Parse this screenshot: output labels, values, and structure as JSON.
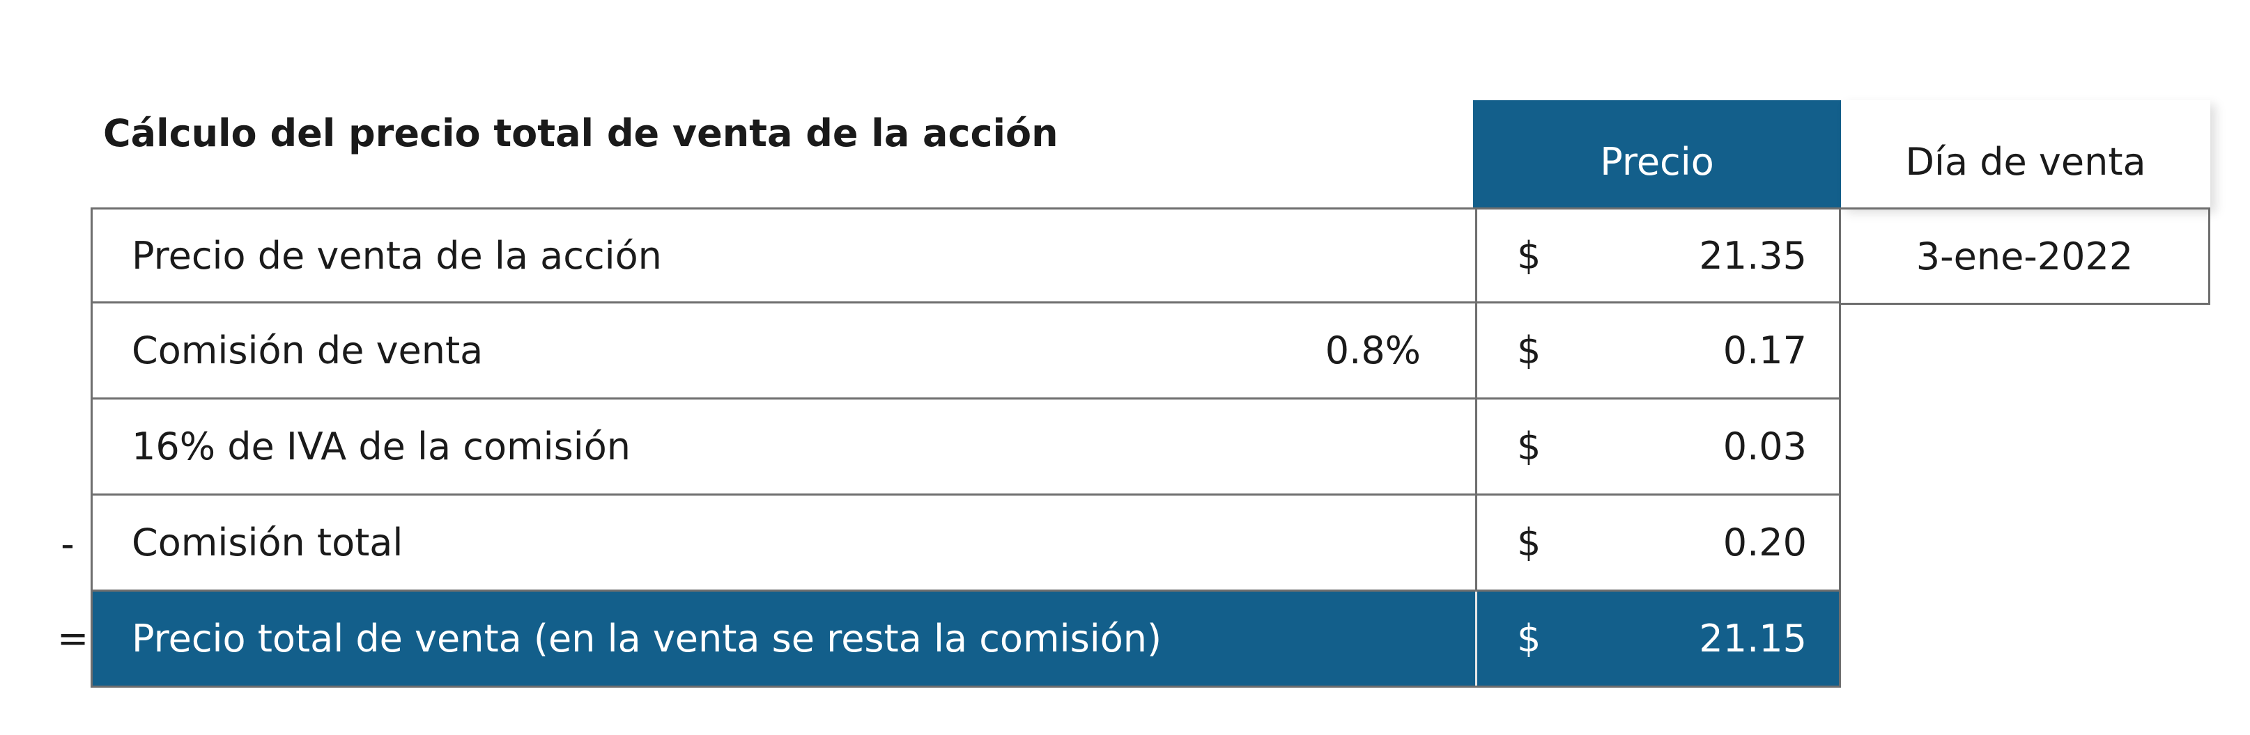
{
  "title": "Cálculo del precio total de venta de la acción",
  "headers": {
    "price": "Precio",
    "sale_day": "Día de venta"
  },
  "rows": [
    {
      "label": "Precio de venta de la acción",
      "pct": "",
      "currency": "$",
      "value": "21.35",
      "op": ""
    },
    {
      "label": "Comisión de venta",
      "pct": "0.8%",
      "currency": "$",
      "value": "0.17",
      "op": ""
    },
    {
      "label": "16% de IVA de la comisión",
      "pct": "",
      "currency": "$",
      "value": "0.03",
      "op": ""
    },
    {
      "label": "Comisión total",
      "pct": "",
      "currency": "$",
      "value": "0.20",
      "op": "-"
    },
    {
      "label": "Precio total de venta (en la venta se resta la comisión)",
      "pct": "",
      "currency": "$",
      "value": "21.15",
      "op": "="
    }
  ],
  "sale_date": "3-ene-2022",
  "colors": {
    "accent": "#135f8b",
    "border": "#6e6e6e"
  }
}
